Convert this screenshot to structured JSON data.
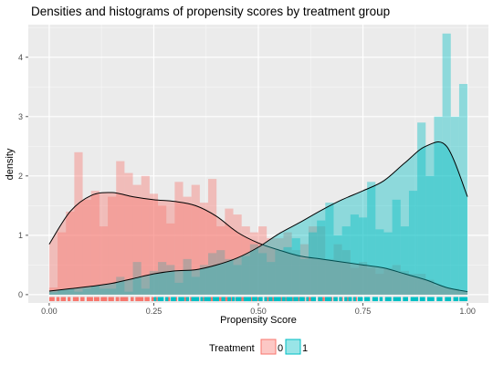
{
  "chart_data": {
    "type": "histogram",
    "title": "Densities and histograms of propensity scores by treatment group",
    "xlabel": "Propensity Score",
    "ylabel": "density",
    "xlim": [
      -0.05,
      1.05
    ],
    "ylim": [
      -0.14,
      4.55
    ],
    "x_ticks": [
      0.0,
      0.25,
      0.5,
      0.75,
      1.0
    ],
    "x_tick_labels": [
      "0.00",
      "0.25",
      "0.50",
      "0.75",
      "1.00"
    ],
    "y_ticks": [
      0,
      1,
      2,
      3,
      4
    ],
    "y_tick_labels": [
      "0",
      "1",
      "2",
      "3",
      "4"
    ],
    "grid": true,
    "legend": {
      "title": "Treatment",
      "position": "bottom",
      "entries": [
        {
          "label": "0",
          "color": "#F8766D"
        },
        {
          "label": "1",
          "color": "#00BFC4"
        }
      ]
    },
    "histogram": {
      "bin_width": 0.02,
      "bin_starts": [
        0.0,
        0.02,
        0.04,
        0.06,
        0.08,
        0.1,
        0.12,
        0.14,
        0.16,
        0.18,
        0.2,
        0.22,
        0.24,
        0.26,
        0.28,
        0.3,
        0.32,
        0.34,
        0.36,
        0.38,
        0.4,
        0.42,
        0.44,
        0.46,
        0.48,
        0.5,
        0.52,
        0.54,
        0.56,
        0.58,
        0.6,
        0.62,
        0.64,
        0.66,
        0.68,
        0.7,
        0.72,
        0.74,
        0.76,
        0.78,
        0.8,
        0.82,
        0.84,
        0.86,
        0.88,
        0.9,
        0.92,
        0.94,
        0.96,
        0.98
      ],
      "series": [
        {
          "name": "0",
          "color": "#F8766D",
          "values": [
            0.12,
            1.05,
            1.4,
            2.4,
            1.6,
            1.75,
            1.15,
            1.65,
            2.25,
            2.05,
            1.85,
            2.0,
            1.7,
            1.5,
            1.2,
            1.9,
            1.65,
            1.85,
            1.55,
            1.95,
            1.15,
            1.45,
            1.35,
            1.15,
            1.05,
            1.15,
            0.95,
            0.95,
            1.05,
            0.75,
            0.85,
            1.15,
            1.15,
            0.6,
            0.85,
            0.75,
            0.45,
            0.55,
            0.45,
            0.35,
            0.45,
            0.5,
            0.4,
            0.35,
            0.35,
            0.25,
            0.15,
            0.12,
            0.1,
            0.05
          ]
        },
        {
          "name": "1",
          "color": "#00BFC4",
          "values": [
            0.04,
            0.08,
            0.1,
            0.05,
            0.1,
            0.15,
            0.1,
            0.1,
            0.3,
            0.05,
            0.55,
            0.1,
            0.4,
            0.55,
            0.5,
            0.2,
            0.6,
            0.3,
            0.5,
            0.7,
            0.75,
            0.6,
            0.5,
            0.65,
            0.85,
            0.7,
            0.55,
            0.75,
            0.8,
            0.95,
            0.6,
            1.05,
            1.25,
            1.55,
            1.0,
            1.15,
            1.35,
            1.3,
            1.9,
            1.1,
            1.05,
            1.6,
            1.15,
            1.75,
            2.9,
            2.0,
            3.0,
            4.4,
            3.0,
            3.55
          ]
        }
      ]
    },
    "density": {
      "x": [
        0.0,
        0.05,
        0.1,
        0.15,
        0.2,
        0.25,
        0.3,
        0.35,
        0.4,
        0.45,
        0.5,
        0.55,
        0.6,
        0.65,
        0.7,
        0.75,
        0.8,
        0.85,
        0.9,
        0.95,
        1.0
      ],
      "series": [
        {
          "name": "0",
          "color": "#F8766D",
          "values": [
            0.85,
            1.4,
            1.67,
            1.72,
            1.65,
            1.6,
            1.57,
            1.5,
            1.32,
            1.05,
            0.87,
            0.75,
            0.65,
            0.6,
            0.55,
            0.5,
            0.45,
            0.35,
            0.25,
            0.12,
            0.05
          ]
        },
        {
          "name": "1",
          "color": "#00BFC4",
          "values": [
            0.06,
            0.1,
            0.14,
            0.19,
            0.27,
            0.35,
            0.4,
            0.42,
            0.5,
            0.62,
            0.8,
            1.03,
            1.22,
            1.42,
            1.6,
            1.75,
            1.92,
            2.22,
            2.5,
            2.5,
            1.65
          ]
        }
      ]
    },
    "rug": {
      "series": [
        {
          "name": "0",
          "color": "#F8766D",
          "range": [
            0.0,
            0.74
          ]
        },
        {
          "name": "1",
          "color": "#00BFC4",
          "range": [
            0.25,
            1.0
          ]
        }
      ]
    }
  }
}
